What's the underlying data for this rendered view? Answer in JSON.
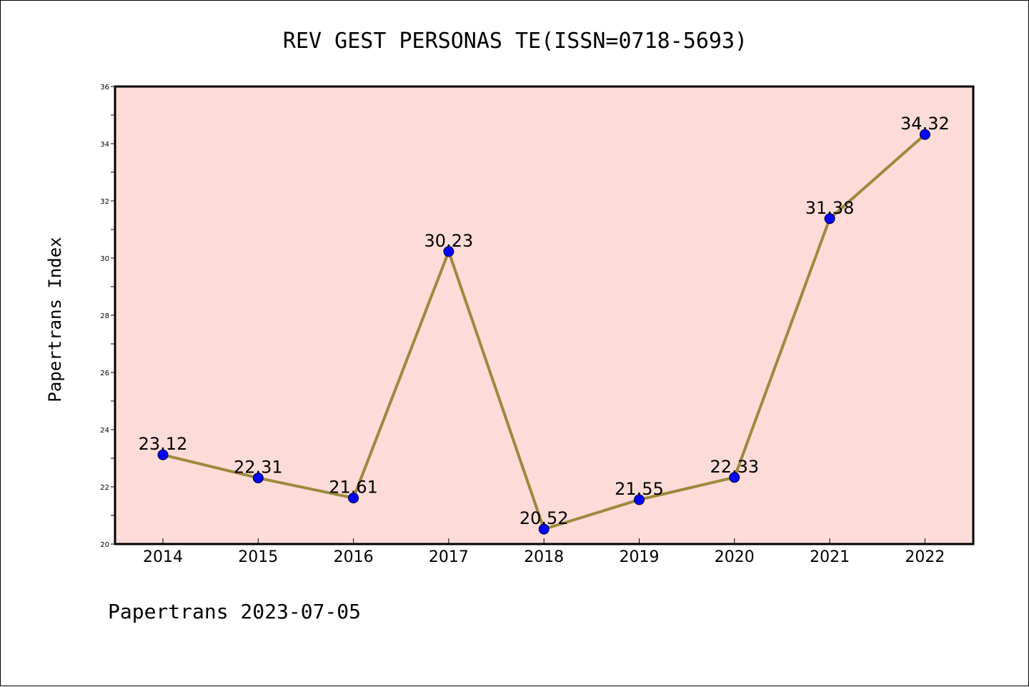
{
  "colors": {
    "plot_bg": "#fddbd8",
    "line": "#9b8a3d",
    "marker": "#0000ff"
  },
  "chart_data": {
    "type": "line",
    "title": "REV GEST PERSONAS TE(ISSN=0718-5693)",
    "xlabel": "",
    "ylabel": "Papertrans Index",
    "categories": [
      "2014",
      "2015",
      "2016",
      "2017",
      "2018",
      "2019",
      "2020",
      "2021",
      "2022"
    ],
    "values": [
      23.12,
      22.31,
      21.61,
      30.23,
      20.52,
      21.55,
      22.33,
      31.38,
      34.32
    ],
    "data_labels": [
      "23.12",
      "22.31",
      "21.61",
      "30.23",
      "20.52",
      "21.55",
      "22.33",
      "31.38",
      "34.32"
    ],
    "ylim": [
      20,
      36
    ],
    "yticks": [
      "20",
      "22",
      "24",
      "26",
      "28",
      "30",
      "32",
      "34",
      "36"
    ],
    "grid": false,
    "footer": "Papertrans 2023-07-05"
  }
}
